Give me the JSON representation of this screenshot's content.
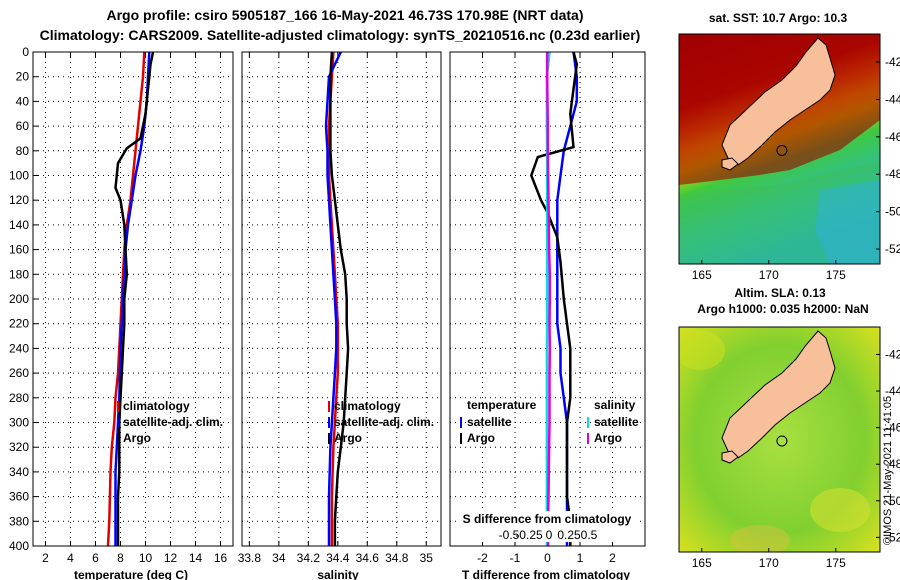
{
  "title": {
    "line1": "Argo profile: csiro 5905187_166 16-May-2021 46.73S 170.98E (NRT data)",
    "line2": "Climatology: CARS2009. Satellite-adjusted climatology: synTS_20210516.nc (0.23d earlier)"
  },
  "colors": {
    "climatology": "#e00000",
    "satellite": "#0000ff",
    "argo": "#000000",
    "salinity_sat": "#00e0e0",
    "salinity_argo": "#e000e0"
  },
  "chart_data": [
    {
      "type": "line",
      "name": "temperature-profile",
      "xlabel": "temperature (deg C)",
      "ylabel": "",
      "xlim": [
        1,
        17
      ],
      "ylim": [
        400,
        0
      ],
      "xticks": [
        2,
        4,
        6,
        8,
        10,
        12,
        14,
        16
      ],
      "yticks": [
        0,
        20,
        40,
        60,
        80,
        100,
        120,
        140,
        160,
        180,
        200,
        220,
        240,
        260,
        280,
        300,
        320,
        340,
        360,
        380,
        400
      ],
      "grid": true,
      "legend_position": "lower-center",
      "legend": [
        "climatology",
        "satellite-adj. clim.",
        "Argo"
      ],
      "series": [
        {
          "name": "climatology",
          "color": "#e00000",
          "x": [
            9.9,
            9.8,
            9.6,
            9.4,
            9.2,
            9.0,
            8.8,
            8.5,
            8.3,
            8.2,
            8.1,
            8.0,
            7.9,
            7.8,
            7.6,
            7.5,
            7.3,
            7.2,
            7.1,
            7.0
          ],
          "y": [
            0,
            20,
            40,
            60,
            80,
            100,
            120,
            140,
            160,
            180,
            200,
            220,
            240,
            260,
            280,
            300,
            320,
            340,
            380,
            400
          ]
        },
        {
          "name": "satellite-adj. clim.",
          "color": "#0000ff",
          "x": [
            10.3,
            10.2,
            10.1,
            9.9,
            9.6,
            9.2,
            8.9,
            8.6,
            8.4,
            8.3,
            8.2,
            8.1,
            8.0,
            7.95,
            7.9,
            7.8,
            7.7,
            7.6,
            7.6,
            7.6
          ],
          "y": [
            0,
            20,
            40,
            60,
            80,
            100,
            120,
            140,
            160,
            180,
            200,
            220,
            240,
            260,
            280,
            300,
            320,
            340,
            380,
            400
          ]
        },
        {
          "name": "Argo",
          "color": "#000000",
          "x": [
            10.6,
            10.5,
            10.4,
            10.3,
            10.2,
            10.1,
            10.0,
            9.8,
            9.6,
            8.5,
            7.8,
            7.6,
            8.0,
            8.3,
            8.4,
            8.5,
            8.3,
            8.3,
            8.2,
            8.1,
            8.0,
            7.9,
            7.9,
            7.9,
            7.8,
            7.8,
            7.8
          ],
          "y": [
            0,
            5,
            10,
            20,
            30,
            40,
            50,
            60,
            70,
            78,
            90,
            110,
            120,
            140,
            160,
            180,
            200,
            220,
            240,
            260,
            280,
            300,
            320,
            340,
            360,
            380,
            400
          ]
        }
      ]
    },
    {
      "type": "line",
      "name": "salinity-profile",
      "xlabel": "salinity",
      "ylabel": "",
      "xlim": [
        33.75,
        35.1
      ],
      "ylim": [
        400,
        0
      ],
      "xticks": [
        33.8,
        34,
        34.2,
        34.4,
        34.6,
        34.8,
        35
      ],
      "xtick_labels": [
        "33.8",
        "34",
        "34.2",
        "34.4",
        "34.6",
        "34.8",
        "35"
      ],
      "grid": true,
      "legend_position": "lower-center",
      "legend": [
        "climatology",
        "satellite-adj. clim.",
        "Argo"
      ],
      "series": [
        {
          "name": "climatology",
          "color": "#e00000",
          "x": [
            34.37,
            34.36,
            34.35,
            34.34,
            34.34,
            34.34,
            34.35,
            34.36,
            34.37,
            34.38,
            34.39,
            34.4,
            34.4,
            34.4,
            34.39,
            34.38,
            34.37,
            34.36,
            34.36
          ],
          "y": [
            0,
            20,
            40,
            60,
            80,
            100,
            120,
            140,
            160,
            180,
            200,
            220,
            240,
            260,
            280,
            300,
            320,
            360,
            400
          ]
        },
        {
          "name": "satellite-adj. clim.",
          "color": "#0000ff",
          "x": [
            34.42,
            34.34,
            34.33,
            34.32,
            34.33,
            34.33,
            34.34,
            34.35,
            34.36,
            34.37,
            34.38,
            34.39,
            34.39,
            34.38,
            34.37,
            34.36,
            34.35,
            34.34,
            34.34
          ],
          "y": [
            0,
            20,
            40,
            60,
            80,
            100,
            120,
            140,
            160,
            180,
            200,
            220,
            240,
            260,
            280,
            300,
            320,
            360,
            400
          ]
        },
        {
          "name": "Argo",
          "color": "#000000",
          "x": [
            34.36,
            34.35,
            34.35,
            34.35,
            34.35,
            34.36,
            34.38,
            34.4,
            34.42,
            34.45,
            34.46,
            34.46,
            34.47,
            34.46,
            34.45,
            34.44,
            34.42,
            34.4,
            34.39,
            34.38,
            34.38
          ],
          "y": [
            0,
            20,
            40,
            60,
            80,
            100,
            120,
            140,
            160,
            180,
            200,
            220,
            240,
            260,
            280,
            300,
            320,
            340,
            360,
            380,
            400
          ]
        }
      ]
    },
    {
      "type": "line",
      "name": "difference-profile",
      "xlabel": "T difference from climatology",
      "xlabel_top": "S difference from climatology",
      "xlim": [
        -3,
        3
      ],
      "ylim": [
        400,
        0
      ],
      "xticks": [
        -2,
        -1,
        0,
        1,
        2
      ],
      "xtick_labels": [
        "-2",
        "-1",
        "0",
        "1",
        "2"
      ],
      "s_ticks": [
        -0.5,
        -0.25,
        0,
        0.25,
        0.5
      ],
      "s_tick_labels": [
        "-0.5",
        "-0.25",
        "0",
        "0.25",
        "0.5"
      ],
      "grid": true,
      "legend_temperature": {
        "title": "temperature",
        "items": [
          "satellite",
          "Argo"
        ]
      },
      "legend_salinity": {
        "title": "salinity",
        "items": [
          "satellite",
          "Argo"
        ]
      },
      "series": [
        {
          "name": "temperature satellite",
          "color": "#0000ff",
          "x": [
            0.8,
            0.9,
            0.9,
            0.7,
            0.5,
            0.4,
            0.3,
            0.3,
            0.3,
            0.3,
            0.3,
            0.3,
            0.4,
            0.4,
            0.5,
            0.6,
            0.6,
            0.6,
            0.6,
            0.6
          ],
          "y": [
            0,
            20,
            40,
            60,
            80,
            100,
            120,
            140,
            160,
            180,
            200,
            220,
            240,
            260,
            280,
            300,
            320,
            340,
            380,
            400
          ]
        },
        {
          "name": "temperature Argo",
          "color": "#000000",
          "x": [
            0.8,
            0.9,
            0.8,
            0.7,
            0.8,
            -0.3,
            -0.5,
            -0.2,
            0.0,
            0.3,
            0.4,
            0.5,
            0.6,
            0.7,
            0.7,
            0.7,
            0.6,
            0.6,
            0.6,
            0.6,
            0.7,
            0.7
          ],
          "y": [
            0,
            10,
            30,
            50,
            77,
            85,
            100,
            120,
            130,
            150,
            170,
            200,
            220,
            240,
            260,
            280,
            300,
            320,
            340,
            360,
            380,
            400
          ]
        },
        {
          "name": "salinity satellite",
          "color": "#00e0e0",
          "x": [
            0.06,
            -0.02,
            -0.02,
            -0.02,
            -0.01,
            -0.01,
            -0.01,
            -0.01,
            -0.01,
            -0.01,
            -0.01,
            -0.01,
            -0.02,
            -0.02,
            -0.02,
            -0.02,
            -0.02,
            -0.02,
            -0.02
          ],
          "y": [
            0,
            20,
            40,
            60,
            80,
            100,
            120,
            140,
            160,
            180,
            200,
            220,
            240,
            260,
            280,
            300,
            320,
            360,
            400
          ]
        },
        {
          "name": "salinity Argo",
          "color": "#e000e0",
          "x": [
            -0.01,
            -0.01,
            0.0,
            0.01,
            0.01,
            0.02,
            0.03,
            0.04,
            0.05,
            0.07,
            0.07,
            0.06,
            0.07,
            0.06,
            0.06,
            0.06,
            0.05,
            0.04,
            0.03,
            0.02,
            0.02
          ],
          "y": [
            0,
            20,
            40,
            60,
            80,
            100,
            120,
            140,
            160,
            180,
            200,
            220,
            240,
            260,
            280,
            300,
            320,
            340,
            360,
            380,
            400
          ]
        }
      ]
    },
    {
      "type": "heatmap",
      "name": "sst-map",
      "title": "sat. SST: 10.7 Argo: 10.3",
      "xticks": [
        165,
        170,
        175
      ],
      "xtick_labels": [
        "165",
        "170",
        "175"
      ],
      "yticks": [
        -42,
        -44,
        -46,
        -48,
        -50,
        -52
      ],
      "yticks_labels": [
        "-42",
        "-44",
        "-46",
        "-48",
        "-50",
        "-52"
      ],
      "xlim": [
        163.3,
        178.3
      ],
      "ylim": [
        -52.8,
        -40.5
      ],
      "argo_position": {
        "lon": 170.98,
        "lat": -46.73
      }
    },
    {
      "type": "heatmap",
      "name": "sla-map",
      "title_line1": "Altim. SLA: 0.13",
      "title_line2": "Argo h1000: 0.035 h2000: NaN",
      "xticks": [
        165,
        170,
        175
      ],
      "xtick_labels": [
        "165",
        "170",
        "175"
      ],
      "yticks": [
        -42,
        -44,
        -46,
        -48,
        -50,
        -52
      ],
      "yticks_labels": [
        "-42",
        "-44",
        "-46",
        "-48",
        "-50",
        "-52"
      ],
      "xlim": [
        163.3,
        178.3
      ],
      "ylim": [
        -52.8,
        -40.5
      ],
      "argo_position": {
        "lon": 170.98,
        "lat": -46.73
      }
    }
  ],
  "credit": "©IMOS 21-May-2021 11:41:05"
}
